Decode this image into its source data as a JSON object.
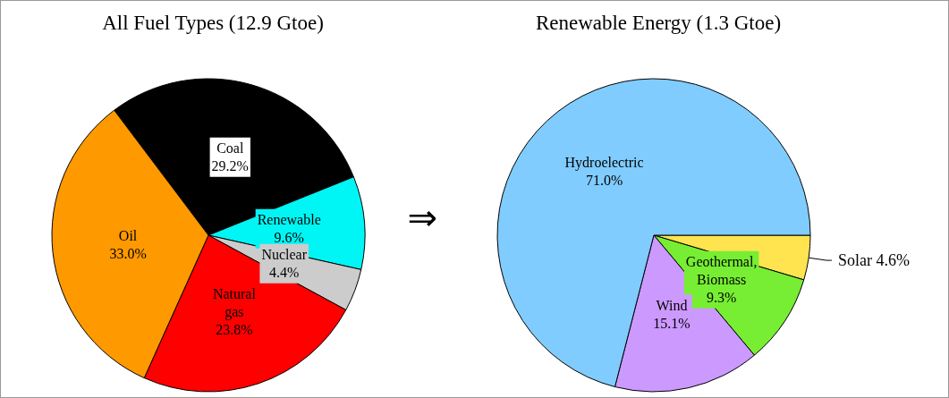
{
  "chart_data": [
    {
      "type": "pie",
      "title": "All Fuel Types (12.9 Gtoe)",
      "categories": [
        "Coal",
        "Renewable",
        "Nuclear",
        "Natural gas",
        "Oil"
      ],
      "values": [
        29.2,
        9.6,
        4.4,
        23.8,
        33.0
      ],
      "value_labels": [
        "29.2%",
        "9.6%",
        "4.4%",
        "23.8%",
        "33.0%"
      ],
      "colors": [
        "#000000",
        "#00f5f5",
        "#cccccc",
        "#ff0000",
        "#ff9900"
      ],
      "annotations": [
        "⇒"
      ]
    },
    {
      "type": "pie",
      "title": "Renewable Energy (1.3 Gtoe)",
      "categories": [
        "Solar",
        "Geothermal, Biomass",
        "Wind",
        "Hydroelectric"
      ],
      "values": [
        4.6,
        9.3,
        15.1,
        71.0
      ],
      "value_labels": [
        "4.6%",
        "9.3%",
        "15.1%",
        "71.0%"
      ],
      "colors": [
        "#ffe34f",
        "#77ee33",
        "#cc99ff",
        "#80ccff"
      ]
    }
  ]
}
